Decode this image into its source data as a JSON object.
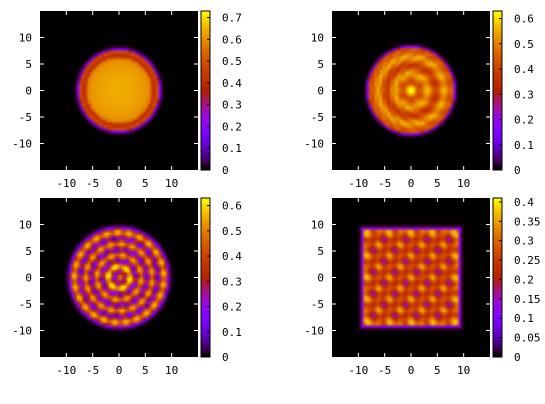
{
  "chart_data": [
    {
      "type": "heatmap",
      "pattern": "disk",
      "xlim": [
        -15,
        15
      ],
      "ylim": [
        -15,
        15
      ],
      "x_ticks": [
        "-10",
        "-5",
        "0",
        "5",
        "10"
      ],
      "y_ticks": [
        "10",
        "5",
        "0",
        "-5",
        "-10"
      ],
      "x_tick_values": [
        -10,
        -5,
        0,
        5,
        10
      ],
      "y_tick_values": [
        10,
        5,
        0,
        -5,
        -10
      ],
      "colorbar_ticks": [
        "0.7",
        "0.6",
        "0.5",
        "0.4",
        "0.3",
        "0.2",
        "0.1",
        "0"
      ],
      "colorbar_values": [
        0.7,
        0.6,
        0.5,
        0.4,
        0.3,
        0.2,
        0.1,
        0
      ],
      "colorbar_range": [
        0,
        0.73
      ],
      "shape_radius": 7.5
    },
    {
      "type": "heatmap",
      "pattern": "concentric-rings",
      "xlim": [
        -15,
        15
      ],
      "ylim": [
        -15,
        15
      ],
      "x_ticks": [
        "-10",
        "-5",
        "0",
        "5",
        "10"
      ],
      "y_ticks": [
        "10",
        "5",
        "0",
        "-5",
        "-10"
      ],
      "x_tick_values": [
        -10,
        -5,
        0,
        5,
        10
      ],
      "y_tick_values": [
        10,
        5,
        0,
        -5,
        -10
      ],
      "colorbar_ticks": [
        "0.6",
        "0.5",
        "0.4",
        "0.3",
        "0.2",
        "0.1",
        "0"
      ],
      "colorbar_values": [
        0.6,
        0.5,
        0.4,
        0.3,
        0.2,
        0.1,
        0
      ],
      "colorbar_range": [
        0,
        0.63
      ],
      "shape_radius": 8
    },
    {
      "type": "heatmap",
      "pattern": "spotted-disk",
      "xlim": [
        -15,
        15
      ],
      "ylim": [
        -15,
        15
      ],
      "x_ticks": [
        "-10",
        "-5",
        "0",
        "5",
        "10"
      ],
      "y_ticks": [
        "10",
        "5",
        "0",
        "-5",
        "-10"
      ],
      "x_tick_values": [
        -10,
        -5,
        0,
        5,
        10
      ],
      "y_tick_values": [
        10,
        5,
        0,
        -5,
        -10
      ],
      "colorbar_ticks": [
        "0.6",
        "0.5",
        "0.4",
        "0.3",
        "0.2",
        "0.1",
        "0"
      ],
      "colorbar_values": [
        0.6,
        0.5,
        0.4,
        0.3,
        0.2,
        0.1,
        0
      ],
      "colorbar_range": [
        0,
        0.63
      ],
      "shape_radius": 9
    },
    {
      "type": "heatmap",
      "pattern": "square-lattice",
      "xlim": [
        -15,
        15
      ],
      "ylim": [
        -15,
        15
      ],
      "x_ticks": [
        "-10",
        "-5",
        "0",
        "5",
        "10"
      ],
      "y_ticks": [
        "10",
        "5",
        "0",
        "-5",
        "-10"
      ],
      "x_tick_values": [
        -10,
        -5,
        0,
        5,
        10
      ],
      "y_tick_values": [
        10,
        5,
        0,
        -5,
        -10
      ],
      "colorbar_ticks": [
        "0.4",
        "0.35",
        "0.3",
        "0.25",
        "0.2",
        "0.15",
        "0.1",
        "0.05",
        "0"
      ],
      "colorbar_values": [
        0.4,
        0.35,
        0.3,
        0.25,
        0.2,
        0.15,
        0.1,
        0.05,
        0
      ],
      "colorbar_range": [
        0,
        0.41
      ],
      "shape_half_width": 9
    }
  ]
}
